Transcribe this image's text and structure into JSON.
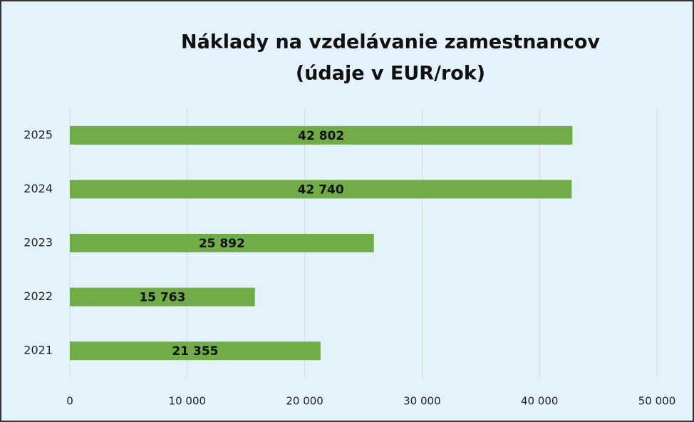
{
  "chart_data": {
    "type": "hbar",
    "title": [
      "Náklady na vzdelávanie zamestnancov",
      "(údaje v EUR/rok)"
    ],
    "categories": [
      "2021",
      "2022",
      "2023",
      "2024",
      "2025"
    ],
    "values": [
      21355,
      15763,
      25892,
      42740,
      42802
    ],
    "value_labels": [
      "21 355",
      "15 763",
      "25 892",
      "42 740",
      "42 802"
    ],
    "color": "#70ad47",
    "xlim": [
      0,
      50000
    ],
    "xticks": [
      0,
      {
        "value": 10000,
        "label": "10 000"
      },
      {
        "value": 20000,
        "label": "20 000"
      },
      {
        "value": 30000,
        "label": "30 000"
      },
      {
        "value": 40000,
        "label": "40 000"
      },
      {
        "value": 50000,
        "label": "50 000"
      }
    ],
    "grid": true
  }
}
